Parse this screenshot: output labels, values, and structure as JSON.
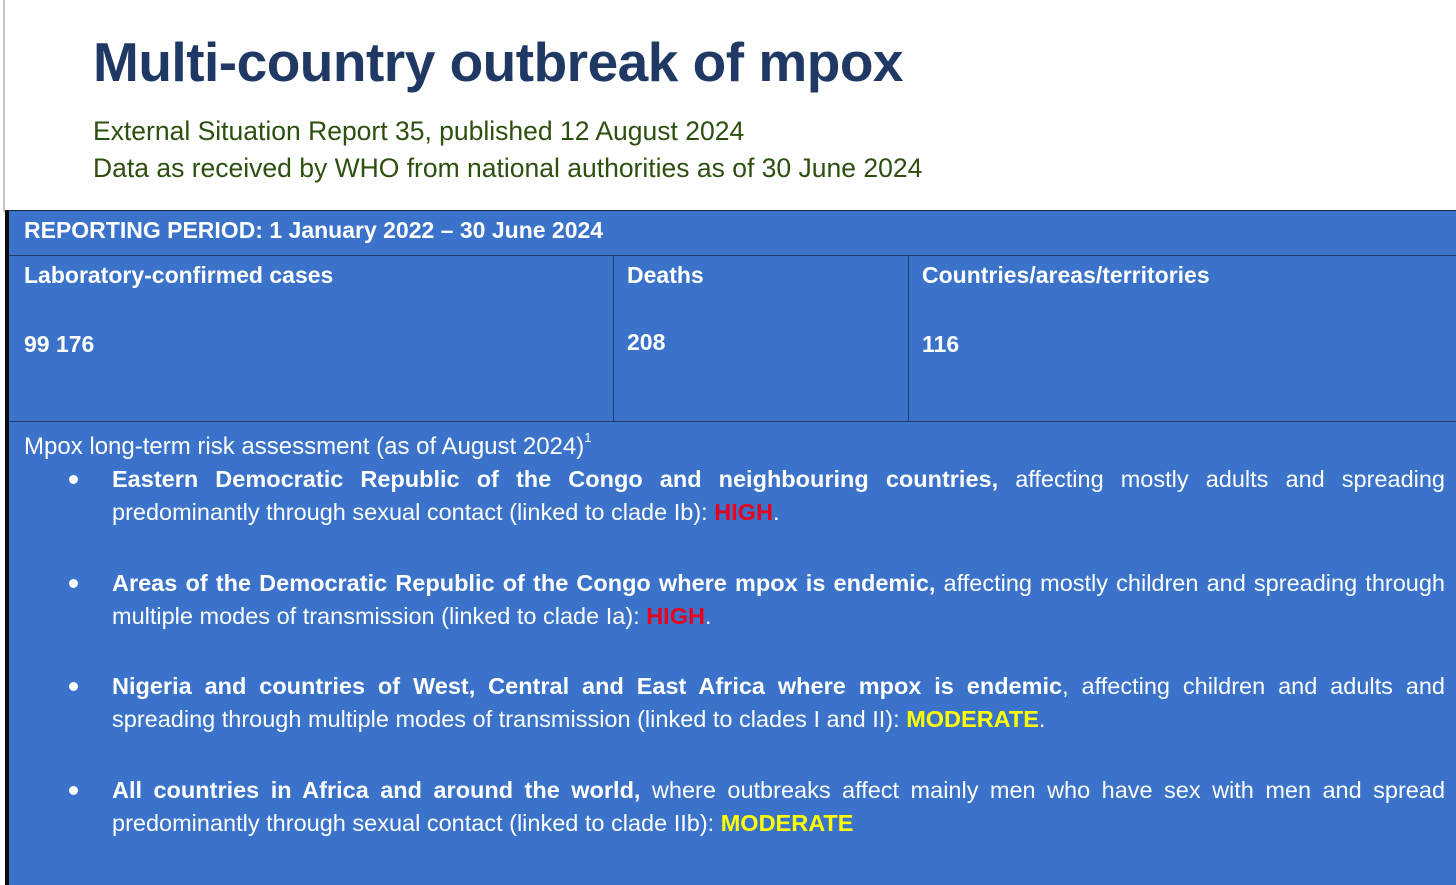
{
  "header": {
    "title": "Multi-country outbreak of mpox",
    "subtitle_line1": "External Situation Report 35, published 12 August 2024",
    "subtitle_line2": "Data as received by WHO from national authorities as of 30 June 2024"
  },
  "summary": {
    "reporting_period": "REPORTING PERIOD: 1 January 2022 – 30 June 2024",
    "stats": [
      {
        "label": "Laboratory-confirmed cases",
        "value": "99 176"
      },
      {
        "label": "Deaths",
        "value": "208"
      },
      {
        "label": "Countries/areas/territories",
        "value": "116"
      }
    ]
  },
  "risk_assessment": {
    "title": "Mpox long-term risk assessment (as of August 2024)",
    "footnote_mark": "1",
    "items": [
      {
        "bold": "Eastern Democratic Republic of the Congo and neighbouring countries,",
        "text": " affecting mostly adults and spreading predominantly through sexual contact (linked to clade Ib): ",
        "level": "HIGH",
        "level_type": "high",
        "trail": "."
      },
      {
        "bold": "Areas of the Democratic Republic of the Congo where mpox is endemic,",
        "text": " affecting mostly children and spreading through multiple modes of transmission (linked to clade Ia):  ",
        "level": "HIGH",
        "level_type": "high",
        "trail": "."
      },
      {
        "bold": "Nigeria and countries of West, Central and East Africa where mpox is endemic",
        "text": ", affecting children and adults and spreading through multiple modes of transmission (linked to clades I and II): ",
        "level": "MODERATE",
        "level_type": "moderate",
        "trail": "."
      },
      {
        "bold": "All countries in Africa and around the world,",
        "text": " where outbreaks affect mainly men who have sex with men and spread predominantly through sexual contact (linked to clade IIb):  ",
        "level": "MODERATE",
        "level_type": "moderate",
        "trail": ""
      }
    ]
  },
  "colors": {
    "title": "#1f3864",
    "subtitle": "#2d4f0f",
    "panel_background": "#3a73c9",
    "high": "#e8001c",
    "moderate": "#ffff00"
  }
}
